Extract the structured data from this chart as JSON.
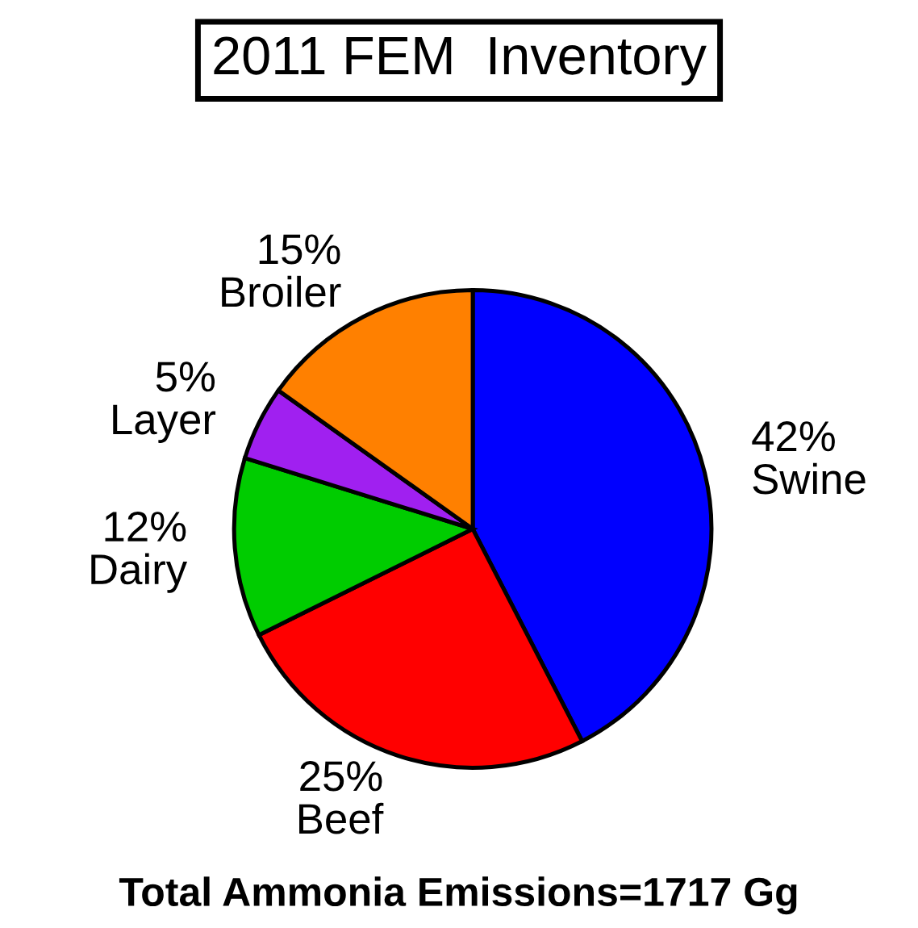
{
  "chart_data": {
    "type": "pie",
    "title": "2011 FEM  Inventory",
    "categories": [
      "Swine",
      "Beef",
      "Dairy",
      "Layer",
      "Broiler"
    ],
    "values": [
      42,
      25,
      12,
      5,
      15
    ],
    "value_labels": [
      "42%",
      "25%",
      "12%",
      "5%",
      "15%"
    ],
    "colors": [
      "#0000ff",
      "#ff0000",
      "#00cc00",
      "#a020f0",
      "#ff8000"
    ],
    "annotations": [
      "Total Ammonia Emissions=1717 Gg"
    ],
    "legend": false
  }
}
